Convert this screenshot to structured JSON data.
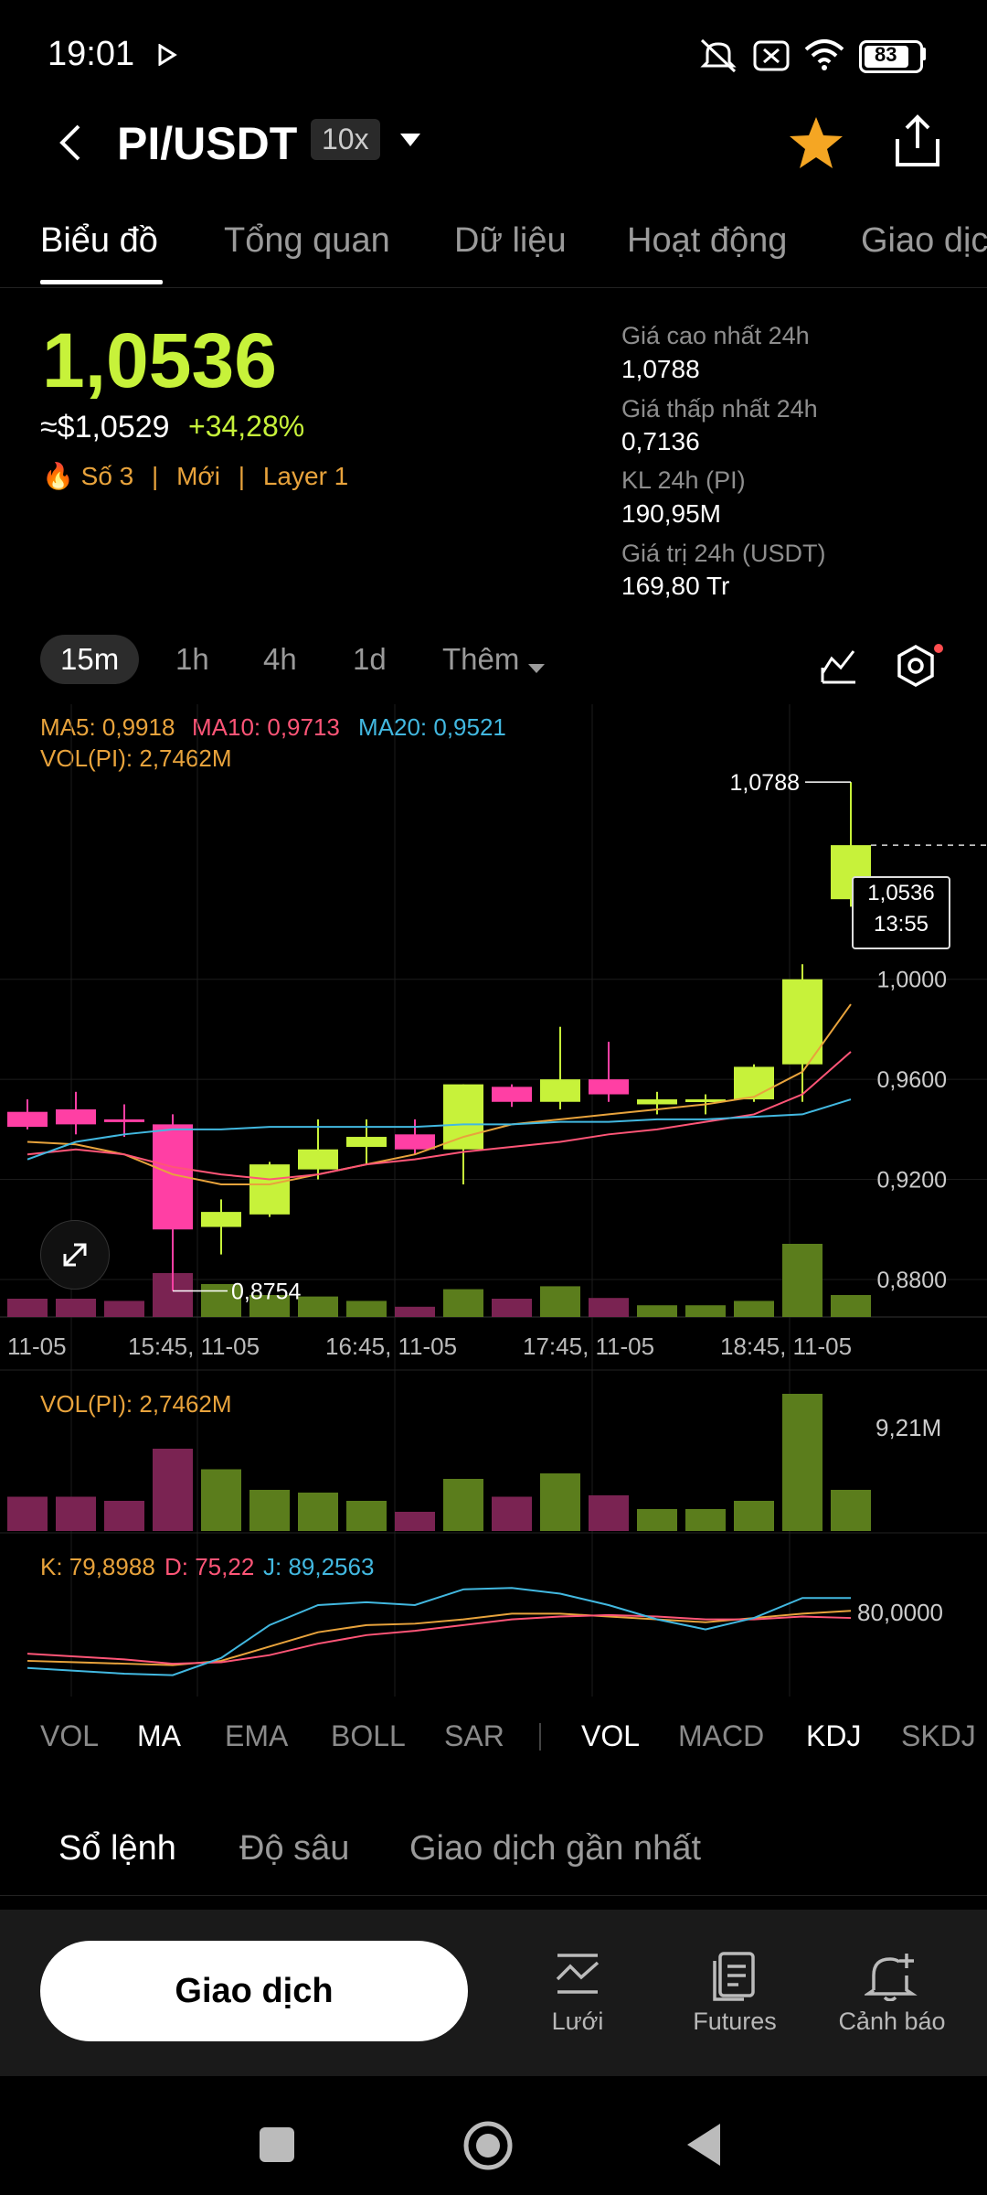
{
  "status_bar": {
    "time": "19:01",
    "battery": "83",
    "icons": [
      "play-icon",
      "mute-icon",
      "close-box-icon",
      "wifi-icon",
      "battery-icon"
    ]
  },
  "header": {
    "pair": "PI/USDT",
    "leverage": "10x",
    "icons": [
      "back-icon",
      "chevron-down-icon",
      "star-icon",
      "share-icon"
    ]
  },
  "tabs": [
    "Biểu đồ",
    "Tổng quan",
    "Dữ liệu",
    "Hoạt động",
    "Giao dịc"
  ],
  "summary": {
    "price": "1,0536",
    "usd_price": "≈$1,0529",
    "change": "+34,28%",
    "tags": [
      "Số 3",
      "Mới",
      "Layer 1"
    ],
    "separator": "|",
    "stats": [
      {
        "label": "Giá cao nhất 24h",
        "value": "1,0788"
      },
      {
        "label": "Giá thấp nhất 24h",
        "value": "0,7136"
      },
      {
        "label": "KL 24h (PI)",
        "value": "190,95M"
      },
      {
        "label": "Giá trị 24h (USDT)",
        "value": "169,80 Tr"
      }
    ]
  },
  "timeframes": [
    "15m",
    "1h",
    "4h",
    "1d",
    "Thêm"
  ],
  "indicators_header": {
    "ma5": "MA5: 0,9918",
    "ma10": "MA10: 0,9713",
    "ma20": "MA20: 0,9521",
    "vol": "VOL(PI): 2,7462M"
  },
  "chart_data": {
    "type": "candlestick",
    "y_ticks": [
      "1,0000",
      "0,9600",
      "0,9200",
      "0,8800"
    ],
    "x_ticks": [
      "11-05",
      "15:45, 11-05",
      "16:45, 11-05",
      "17:45, 11-05",
      "18:45, 11-05"
    ],
    "high_marker": "1,0788",
    "low_marker": "0,8754",
    "current_price": "1,0536",
    "countdown": "13:55",
    "candles": [
      {
        "o": 0.947,
        "h": 0.952,
        "l": 0.94,
        "c": 0.941,
        "up": false
      },
      {
        "o": 0.948,
        "h": 0.955,
        "l": 0.938,
        "c": 0.942,
        "up": false
      },
      {
        "o": 0.944,
        "h": 0.95,
        "l": 0.937,
        "c": 0.943,
        "up": false
      },
      {
        "o": 0.942,
        "h": 0.946,
        "l": 0.8754,
        "c": 0.9,
        "up": false
      },
      {
        "o": 0.901,
        "h": 0.912,
        "l": 0.89,
        "c": 0.907,
        "up": true
      },
      {
        "o": 0.906,
        "h": 0.927,
        "l": 0.905,
        "c": 0.926,
        "up": true
      },
      {
        "o": 0.924,
        "h": 0.944,
        "l": 0.92,
        "c": 0.932,
        "up": true
      },
      {
        "o": 0.933,
        "h": 0.944,
        "l": 0.926,
        "c": 0.937,
        "up": true
      },
      {
        "o": 0.938,
        "h": 0.944,
        "l": 0.93,
        "c": 0.932,
        "up": false
      },
      {
        "o": 0.932,
        "h": 0.958,
        "l": 0.918,
        "c": 0.958,
        "up": true
      },
      {
        "o": 0.957,
        "h": 0.958,
        "l": 0.949,
        "c": 0.951,
        "up": false
      },
      {
        "o": 0.951,
        "h": 0.981,
        "l": 0.948,
        "c": 0.96,
        "up": true
      },
      {
        "o": 0.96,
        "h": 0.975,
        "l": 0.951,
        "c": 0.954,
        "up": false
      },
      {
        "o": 0.952,
        "h": 0.955,
        "l": 0.946,
        "c": 0.95,
        "up": true
      },
      {
        "o": 0.951,
        "h": 0.954,
        "l": 0.946,
        "c": 0.952,
        "up": true
      },
      {
        "o": 0.952,
        "h": 0.966,
        "l": 0.951,
        "c": 0.965,
        "up": true
      },
      {
        "o": 0.966,
        "h": 1.006,
        "l": 0.951,
        "c": 1.0,
        "up": true
      },
      {
        "o": 1.032,
        "h": 1.0788,
        "l": 1.029,
        "c": 1.0536,
        "up": true
      }
    ],
    "volume": [
      0.25,
      0.25,
      0.22,
      0.6,
      0.45,
      0.3,
      0.28,
      0.22,
      0.14,
      0.38,
      0.25,
      0.42,
      0.26,
      0.16,
      0.16,
      0.22,
      1.0,
      0.3
    ],
    "ma5": [
      0.935,
      0.934,
      0.93,
      0.922,
      0.918,
      0.918,
      0.922,
      0.926,
      0.93,
      0.937,
      0.942,
      0.944,
      0.946,
      0.948,
      0.95,
      0.953,
      0.963,
      0.99
    ],
    "ma10": [
      0.93,
      0.932,
      0.93,
      0.925,
      0.922,
      0.92,
      0.922,
      0.926,
      0.928,
      0.931,
      0.933,
      0.935,
      0.938,
      0.94,
      0.943,
      0.946,
      0.954,
      0.971
    ],
    "ma20": [
      0.928,
      0.935,
      0.938,
      0.94,
      0.94,
      0.941,
      0.941,
      0.941,
      0.941,
      0.942,
      0.942,
      0.943,
      0.943,
      0.944,
      0.944,
      0.945,
      0.946,
      0.952
    ],
    "y_range": [
      0.865,
      1.088
    ],
    "vol_panel": {
      "label": "VOL(PI): 2,7462M",
      "max_label": "9,21M"
    },
    "kdj_panel": {
      "label_k": "K: 79,8988",
      "label_d": "D: 75,22",
      "label_j": "J: 89,2563",
      "level_label": "80,0000",
      "k": [
        45,
        44,
        43,
        42,
        45,
        55,
        65,
        70,
        71,
        74,
        78,
        78,
        76,
        74,
        72,
        75,
        78,
        80
      ],
      "d": [
        50,
        48,
        46,
        43,
        44,
        49,
        57,
        63,
        66,
        70,
        74,
        76,
        77,
        76,
        74,
        74,
        76,
        75
      ],
      "j": [
        40,
        38,
        36,
        35,
        47,
        70,
        84,
        86,
        84,
        95,
        96,
        92,
        84,
        74,
        67,
        75,
        89,
        89
      ]
    }
  },
  "indicator_tabs": [
    {
      "label": "VOL",
      "on": false
    },
    {
      "label": "MA",
      "on": true
    },
    {
      "label": "EMA",
      "on": false
    },
    {
      "label": "BOLL",
      "on": false
    },
    {
      "label": "SAR",
      "on": false
    },
    {
      "label": "VOL",
      "on": true
    },
    {
      "label": "MACD",
      "on": false
    },
    {
      "label": "KDJ",
      "on": true
    },
    {
      "label": "SKDJ",
      "on": false
    }
  ],
  "orderbook_tabs": [
    "Sổ lệnh",
    "Độ sâu",
    "Giao dịch gần nhất"
  ],
  "bottom": {
    "trade": "Giao dịch",
    "grid": "Lưới",
    "futures": "Futures",
    "alert": "Cảnh báo"
  },
  "colors": {
    "up": "#c7f23a",
    "down": "#ff3fa4",
    "ma5": "#e8a33c",
    "ma10": "#ff5577",
    "ma20": "#42b8e0"
  }
}
